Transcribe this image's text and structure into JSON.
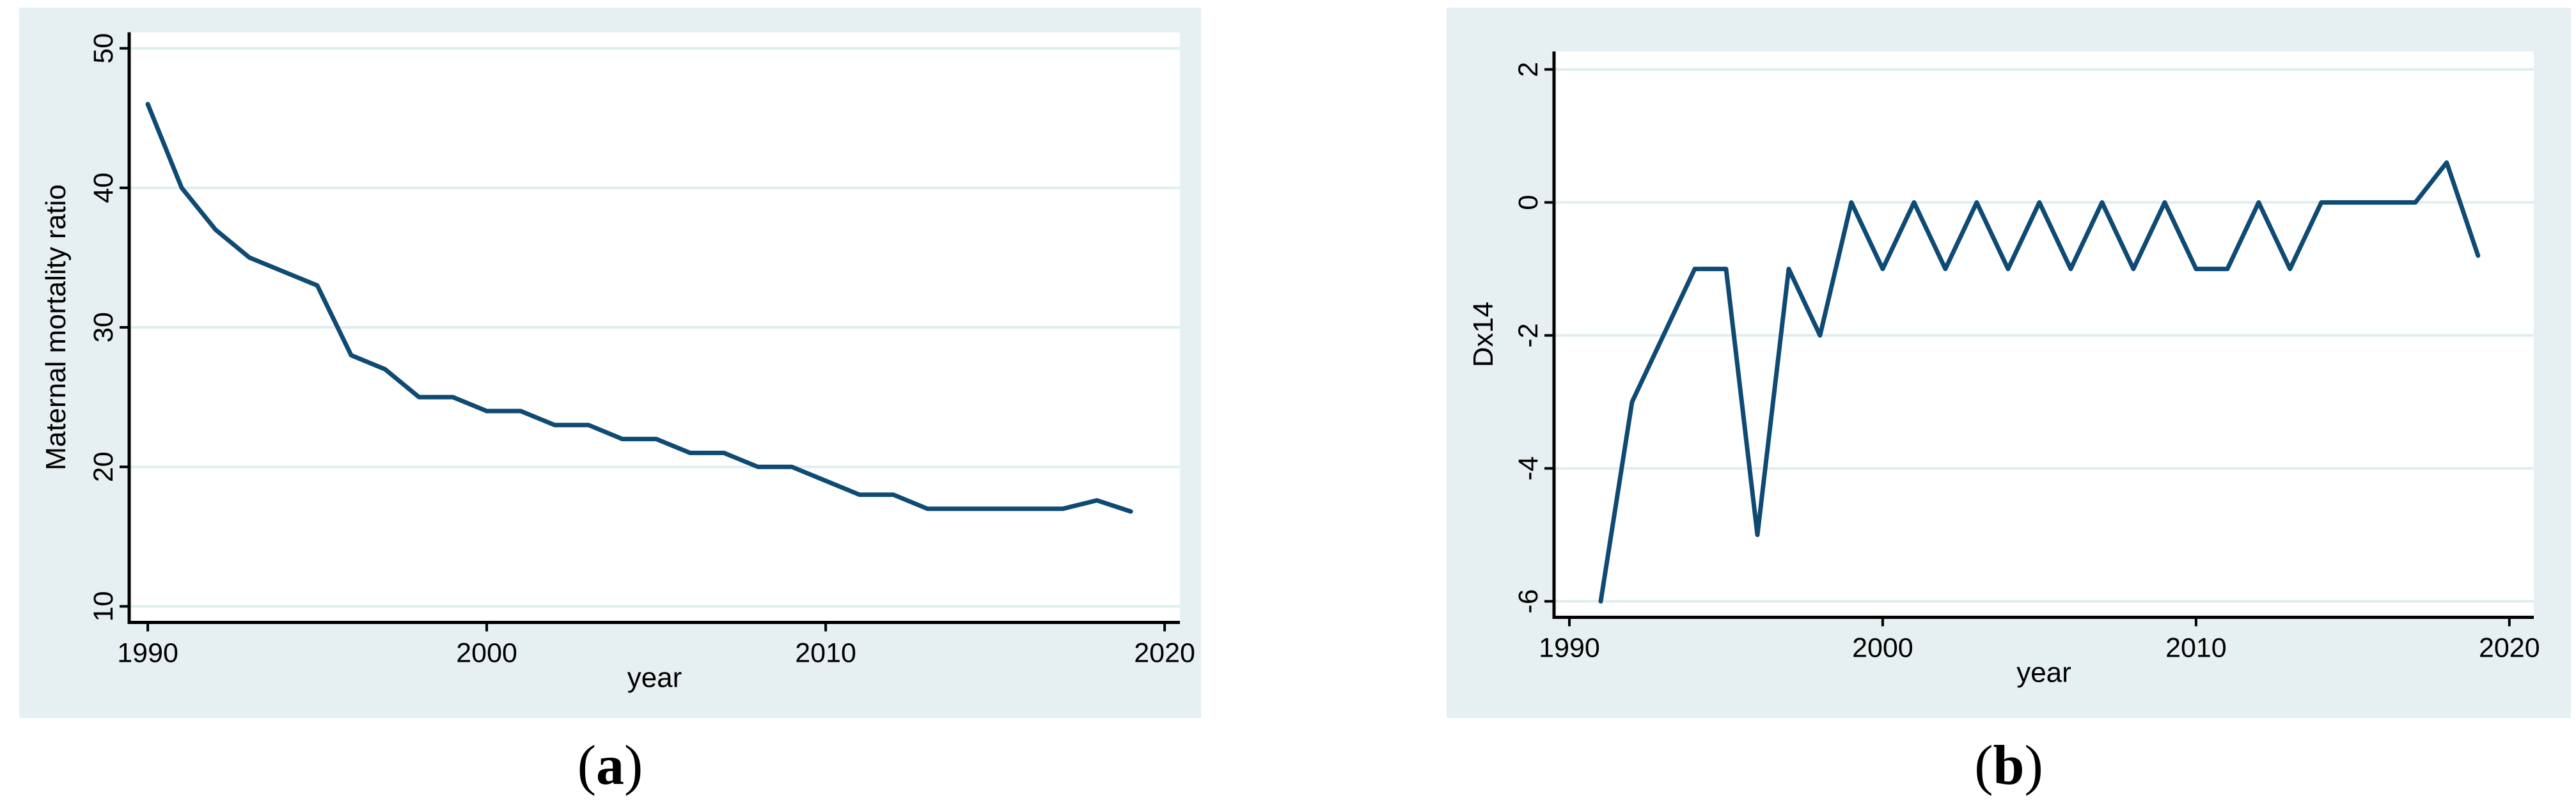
{
  "figure": {
    "description": "Two-panel Stata line-graph figure",
    "colors": {
      "panel_bg": "#e6eff1",
      "plot_bg": "#ffffff",
      "grid": "#e0edee",
      "axis": "#000000",
      "text": "#000000",
      "line": "#0e4a73"
    },
    "captions": [
      {
        "open": "(",
        "letter": "a",
        "close": ")"
      },
      {
        "open": "(",
        "letter": "b",
        "close": ")"
      }
    ]
  },
  "chart_data": [
    {
      "type": "line",
      "title": "",
      "xlabel": "year",
      "ylabel": "Maternal mortality ratio",
      "legend": "none",
      "grid": "horizontal",
      "line_color": "#0e4a73",
      "x": [
        1990,
        1991,
        1992,
        1993,
        1994,
        1995,
        1996,
        1997,
        1998,
        1999,
        2000,
        2001,
        2002,
        2003,
        2004,
        2005,
        2006,
        2007,
        2008,
        2009,
        2010,
        2011,
        2012,
        2013,
        2014,
        2015,
        2016,
        2017,
        2018,
        2019
      ],
      "values": [
        46,
        40,
        37,
        35,
        34,
        33,
        28,
        27,
        25,
        25,
        24,
        24,
        23,
        23,
        22,
        22,
        21,
        21,
        20,
        20,
        19,
        18,
        18,
        17,
        17,
        17,
        17,
        17,
        17.6,
        16.8
      ],
      "xticks": [
        1990,
        2000,
        2010,
        2020
      ],
      "yticks": [
        10,
        20,
        30,
        40,
        50
      ],
      "xlim": [
        1989.45,
        2020.45
      ],
      "ylim": [
        8.85,
        51.15
      ]
    },
    {
      "type": "line",
      "title": "",
      "xlabel": "year",
      "ylabel": "Dx14",
      "legend": "none",
      "grid": "horizontal",
      "line_color": "#0e4a73",
      "x": [
        1991,
        1992,
        1993,
        1994,
        1995,
        1996,
        1997,
        1998,
        1999,
        2000,
        2001,
        2002,
        2003,
        2004,
        2005,
        2006,
        2007,
        2008,
        2009,
        2010,
        2011,
        2012,
        2013,
        2014,
        2015,
        2016,
        2017,
        2018,
        2019
      ],
      "values": [
        -6,
        -3,
        -2,
        -1,
        -1,
        -5,
        -1,
        -2,
        0,
        -1,
        0,
        -1,
        0,
        -1,
        0,
        -1,
        0,
        -1,
        0,
        -1,
        -1,
        0,
        -1,
        0,
        0,
        0,
        0,
        0.6,
        -0.8
      ],
      "xticks": [
        1990,
        2000,
        2010,
        2020
      ],
      "yticks": [
        2,
        0,
        -2,
        -4,
        -6
      ],
      "xlim": [
        1989.51,
        2020.78
      ],
      "ylim": [
        -6.24,
        2.27
      ]
    }
  ]
}
